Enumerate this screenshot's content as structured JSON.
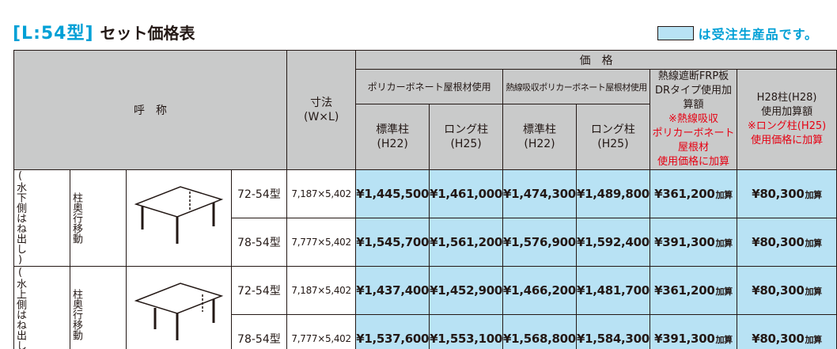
{
  "title": {
    "bracket": "[L:54型]",
    "text": "セット価格表"
  },
  "legend": {
    "text": "は受注生産品です。",
    "swatch_color": "#b8e2f4"
  },
  "header": {
    "name": "呼　称",
    "size_line1": "寸法",
    "size_line2": "(W×L)",
    "price": "価　格",
    "group_poly": "ポリカーボネート屋根材使用",
    "group_heat": "熱線吸収ポリカーボネート屋根材使用",
    "std_line1": "標準柱",
    "std_line2": "(H22)",
    "long_line1": "ロング柱",
    "long_line2": "(H25)",
    "frp_line1": "熱線遮断FRP板",
    "frp_line2": "DRタイプ使用加算額",
    "frp_note1": "※熱線吸収",
    "frp_note2": "ポリカーボネート屋根材",
    "frp_note3": "使用価格に加算",
    "h28_line1": "H28柱(H28)",
    "h28_line2": "使用加算額",
    "h28_note1": "※ロング柱(H25)",
    "h28_note2": "使用価格に加算"
  },
  "groups": [
    {
      "label_col1": "(水下側はね出し)",
      "label_col2": "柱奥行移動",
      "diagram": "pergola-low-side-icon",
      "rows": [
        {
          "model": "72-54型",
          "size": "7,187×5,402",
          "poly_std": "¥1,445,500",
          "poly_long": "¥1,461,000",
          "heat_std": "¥1,474,300",
          "heat_long": "¥1,489,800",
          "frp": "¥361,200",
          "h28": "¥80,300"
        },
        {
          "model": "78-54型",
          "size": "7,777×5,402",
          "poly_std": "¥1,545,700",
          "poly_long": "¥1,561,200",
          "heat_std": "¥1,576,900",
          "heat_long": "¥1,592,400",
          "frp": "¥391,300",
          "h28": "¥80,300"
        }
      ]
    },
    {
      "label_col1": "(水上側はね出し)",
      "label_col2": "柱奥行移動",
      "diagram": "pergola-high-side-icon",
      "rows": [
        {
          "model": "72-54型",
          "size": "7,187×5,402",
          "poly_std": "¥1,437,400",
          "poly_long": "¥1,452,900",
          "heat_std": "¥1,466,200",
          "heat_long": "¥1,481,700",
          "frp": "¥361,200",
          "h28": "¥80,300"
        },
        {
          "model": "78-54型",
          "size": "7,777×5,402",
          "poly_std": "¥1,537,600",
          "poly_long": "¥1,553,100",
          "heat_std": "¥1,568,800",
          "heat_long": "¥1,584,300",
          "frp": "¥391,300",
          "h28": "¥80,300"
        }
      ]
    }
  ],
  "add_suffix": "加算"
}
